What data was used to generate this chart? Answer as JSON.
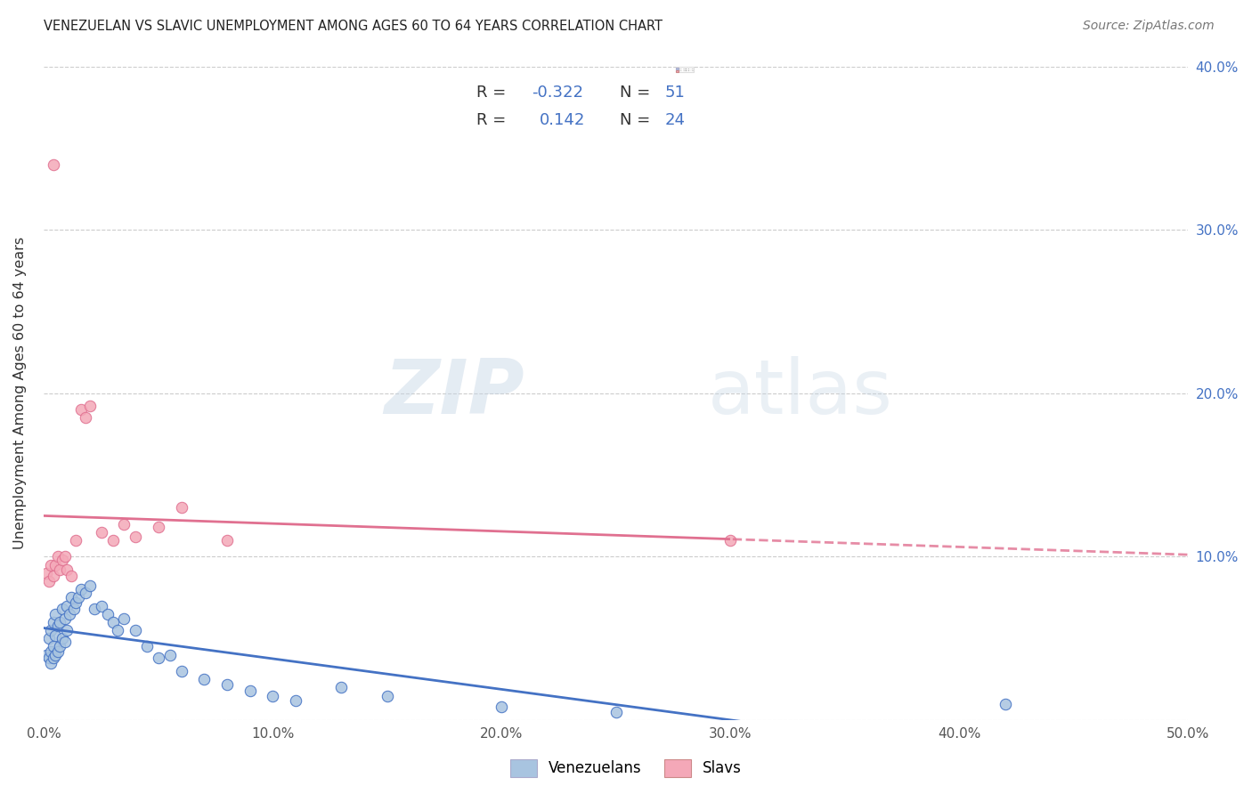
{
  "title": "VENEZUELAN VS SLAVIC UNEMPLOYMENT AMONG AGES 60 TO 64 YEARS CORRELATION CHART",
  "source": "Source: ZipAtlas.com",
  "ylabel": "Unemployment Among Ages 60 to 64 years",
  "xlim": [
    0.0,
    0.5
  ],
  "ylim": [
    0.0,
    0.4
  ],
  "xticks": [
    0.0,
    0.1,
    0.2,
    0.3,
    0.4,
    0.5
  ],
  "yticks": [
    0.0,
    0.1,
    0.2,
    0.3,
    0.4
  ],
  "xticklabels": [
    "0.0%",
    "10.0%",
    "20.0%",
    "30.0%",
    "40.0%",
    "50.0%"
  ],
  "yticklabels_right": [
    "",
    "10.0%",
    "20.0%",
    "30.0%",
    "40.0%"
  ],
  "r_venezuelan": -0.322,
  "n_venezuelan": 51,
  "r_slavic": 0.142,
  "n_slavic": 24,
  "venezuelan_color": "#a8c4e0",
  "slavic_color": "#f4a8b8",
  "venezuelan_line_color": "#4472c4",
  "slavic_line_color": "#e07090",
  "background_color": "#ffffff",
  "watermark_color": "#d0dce8",
  "venezuelan_x": [
    0.001,
    0.002,
    0.002,
    0.003,
    0.003,
    0.003,
    0.004,
    0.004,
    0.004,
    0.005,
    0.005,
    0.005,
    0.006,
    0.006,
    0.007,
    0.007,
    0.008,
    0.008,
    0.009,
    0.009,
    0.01,
    0.01,
    0.011,
    0.012,
    0.013,
    0.014,
    0.015,
    0.016,
    0.018,
    0.02,
    0.022,
    0.025,
    0.028,
    0.03,
    0.032,
    0.035,
    0.04,
    0.045,
    0.05,
    0.055,
    0.06,
    0.07,
    0.08,
    0.09,
    0.1,
    0.11,
    0.13,
    0.15,
    0.2,
    0.25,
    0.42
  ],
  "venezuelan_y": [
    0.04,
    0.038,
    0.05,
    0.035,
    0.042,
    0.055,
    0.038,
    0.045,
    0.06,
    0.04,
    0.052,
    0.065,
    0.042,
    0.058,
    0.045,
    0.06,
    0.05,
    0.068,
    0.048,
    0.062,
    0.055,
    0.07,
    0.065,
    0.075,
    0.068,
    0.072,
    0.075,
    0.08,
    0.078,
    0.082,
    0.068,
    0.07,
    0.065,
    0.06,
    0.055,
    0.062,
    0.055,
    0.045,
    0.038,
    0.04,
    0.03,
    0.025,
    0.022,
    0.018,
    0.015,
    0.012,
    0.02,
    0.015,
    0.008,
    0.005,
    0.01
  ],
  "slavic_x": [
    0.001,
    0.002,
    0.003,
    0.004,
    0.005,
    0.006,
    0.007,
    0.008,
    0.009,
    0.01,
    0.012,
    0.014,
    0.016,
    0.018,
    0.02,
    0.025,
    0.03,
    0.035,
    0.04,
    0.05,
    0.06,
    0.08,
    0.3,
    0.004
  ],
  "slavic_y": [
    0.09,
    0.085,
    0.095,
    0.088,
    0.095,
    0.1,
    0.092,
    0.098,
    0.1,
    0.092,
    0.088,
    0.11,
    0.19,
    0.185,
    0.192,
    0.115,
    0.11,
    0.12,
    0.112,
    0.118,
    0.13,
    0.11,
    0.11,
    0.34
  ]
}
